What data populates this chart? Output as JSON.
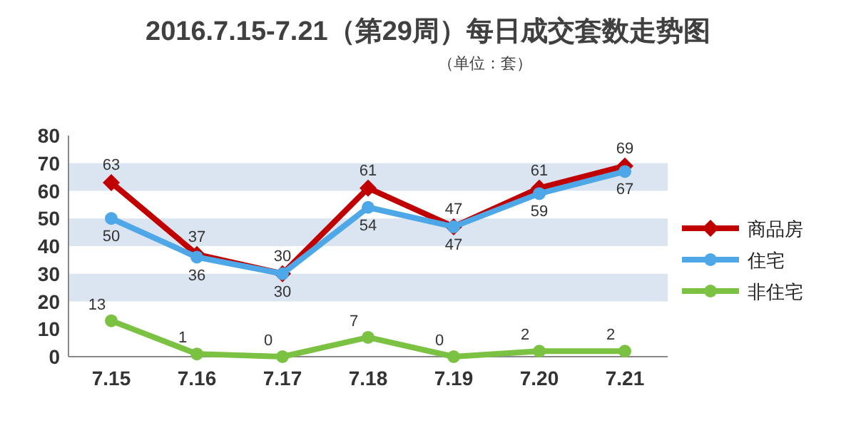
{
  "chart_data": {
    "type": "line",
    "title": "2016.7.15-7.21（第29周）每日成交套数走势图",
    "subtitle": "（单位：套）",
    "categories": [
      "7.15",
      "7.16",
      "7.17",
      "7.18",
      "7.19",
      "7.20",
      "7.21"
    ],
    "series": [
      {
        "name": "商品房",
        "color": "#c00000",
        "marker": "diamond",
        "values": [
          63,
          37,
          30,
          61,
          47,
          61,
          69
        ]
      },
      {
        "name": "住宅",
        "color": "#4ea8e8",
        "marker": "circle",
        "values": [
          50,
          36,
          30,
          54,
          47,
          59,
          67
        ]
      },
      {
        "name": "非住宅",
        "color": "#7cc242",
        "marker": "circle",
        "values": [
          13,
          1,
          0,
          7,
          0,
          2,
          2
        ]
      }
    ],
    "ylim": [
      0,
      80
    ],
    "yticks": [
      0,
      10,
      20,
      30,
      40,
      50,
      60,
      70,
      80
    ],
    "bands": [
      {
        "axis": "y",
        "from": 20,
        "to": 30,
        "color": "#dbe5f1"
      },
      {
        "axis": "y",
        "from": 40,
        "to": 50,
        "color": "#dbe5f1"
      },
      {
        "axis": "y",
        "from": 60,
        "to": 70,
        "color": "#dbe5f1"
      }
    ],
    "legend": "right",
    "data_labels": true
  }
}
